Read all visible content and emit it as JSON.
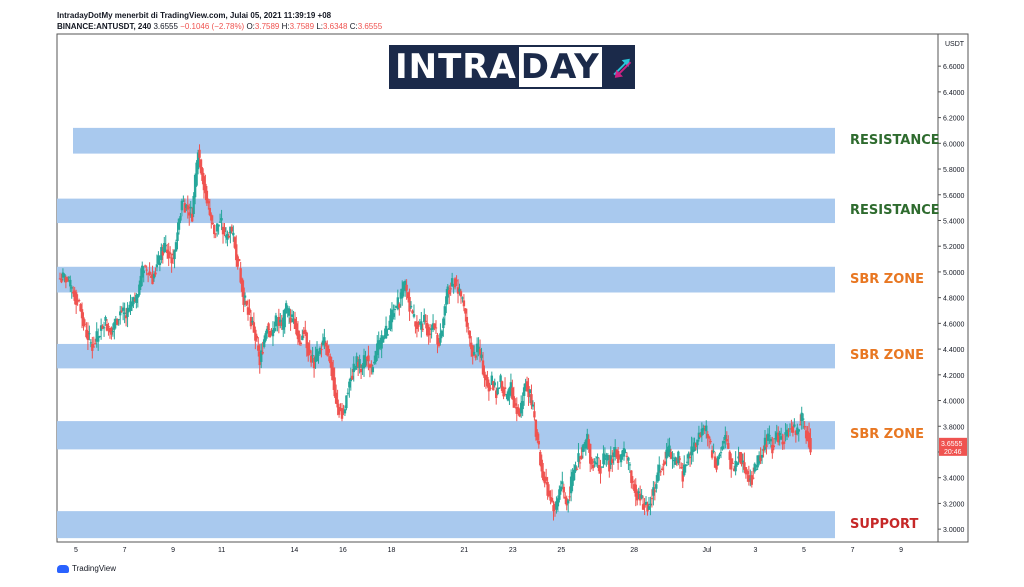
{
  "header": {
    "line1": "IntradayDotMy menerbit di TradingView.com, Julai 05, 2021 11:39:19 +08",
    "symbol": "BINANCE:ANTUSDT, 240",
    "last": "3.6555",
    "change": "−0.1046 (−2.78%)",
    "o_label": "O:",
    "o": "3.7589",
    "h_label": "H:",
    "h": "3.7589",
    "l_label": "L:",
    "l": "3.6348",
    "c_label": "C:",
    "c": "3.6555"
  },
  "logo": {
    "part1": "INTRA",
    "part2": "DAY"
  },
  "footer": {
    "brand": "TradingView"
  },
  "colors": {
    "up": "#26a69a",
    "down": "#ef5350",
    "zone_fill": "#a9c9ee",
    "resistance": "#2e6b2e",
    "sbr": "#e87722",
    "support": "#c62828"
  },
  "chart_data": {
    "type": "candlestick",
    "ylabel": "USDT",
    "ylim": [
      2.9,
      6.85
    ],
    "y_ticks": [
      "3.0000",
      "3.2000",
      "3.4000",
      "3.6000",
      "3.8000",
      "4.0000",
      "4.2000",
      "4.4000",
      "4.6000",
      "4.8000",
      "5.0000",
      "5.2000",
      "5.4000",
      "5.6000",
      "5.8000",
      "6.0000",
      "6.2000",
      "6.4000",
      "6.6000"
    ],
    "x_ticks": [
      {
        "label": "5",
        "day": 5
      },
      {
        "label": "7",
        "day": 7
      },
      {
        "label": "9",
        "day": 9
      },
      {
        "label": "11",
        "day": 11
      },
      {
        "label": "14",
        "day": 14
      },
      {
        "label": "16",
        "day": 16
      },
      {
        "label": "18",
        "day": 18
      },
      {
        "label": "21",
        "day": 21
      },
      {
        "label": "23",
        "day": 23
      },
      {
        "label": "25",
        "day": 25
      },
      {
        "label": "28",
        "day": 28
      },
      {
        "label": "Jul",
        "day": 31
      },
      {
        "label": "3",
        "day": 33
      },
      {
        "label": "5",
        "day": 35
      },
      {
        "label": "7",
        "day": 37
      },
      {
        "label": "9",
        "day": 39
      }
    ],
    "price_badge": {
      "price": 3.6555,
      "label": "3.6555",
      "countdown": "20:46"
    },
    "zones": [
      {
        "label": "RESISTANCE",
        "kind": "resistance",
        "low": 5.92,
        "high": 6.12
      },
      {
        "label": "RESISTANCE",
        "kind": "resistance",
        "low": 5.38,
        "high": 5.57
      },
      {
        "label": "SBR ZONE",
        "kind": "sbr",
        "low": 4.84,
        "high": 5.04
      },
      {
        "label": "SBR ZONE",
        "kind": "sbr",
        "low": 4.25,
        "high": 4.44
      },
      {
        "label": "SBR ZONE",
        "kind": "sbr",
        "low": 3.62,
        "high": 3.84
      },
      {
        "label": "SUPPORT",
        "kind": "support",
        "low": 2.93,
        "high": 3.14
      }
    ],
    "price_path": [
      [
        4.95,
        5
      ],
      [
        4.75,
        9
      ],
      [
        4.55,
        4
      ],
      [
        4.42,
        5
      ],
      [
        4.5,
        4
      ],
      [
        4.62,
        4
      ],
      [
        4.55,
        6
      ],
      [
        4.7,
        5
      ],
      [
        4.65,
        4
      ],
      [
        4.8,
        7
      ],
      [
        5.05,
        5
      ],
      [
        4.95,
        6
      ],
      [
        5.2,
        8
      ],
      [
        5.1,
        6
      ],
      [
        5.55,
        6
      ],
      [
        5.45,
        7
      ],
      [
        5.95,
        4
      ],
      [
        5.55,
        6
      ],
      [
        5.3,
        5
      ],
      [
        5.4,
        4
      ],
      [
        5.25,
        4
      ],
      [
        5.35,
        3
      ],
      [
        5.1,
        5
      ],
      [
        4.8,
        4
      ],
      [
        4.65,
        4
      ],
      [
        4.55,
        3
      ],
      [
        4.3,
        4
      ],
      [
        4.6,
        5
      ],
      [
        4.5,
        3
      ],
      [
        4.65,
        4
      ],
      [
        4.55,
        3
      ],
      [
        4.7,
        3
      ],
      [
        4.65,
        3
      ],
      [
        4.6,
        3
      ],
      [
        4.45,
        3
      ],
      [
        4.55,
        3
      ],
      [
        4.35,
        4
      ],
      [
        4.3,
        3
      ],
      [
        4.4,
        4
      ],
      [
        4.45,
        3
      ],
      [
        4.3,
        4
      ],
      [
        3.95,
        5
      ],
      [
        3.9,
        4
      ],
      [
        4.15,
        4
      ],
      [
        4.3,
        5
      ],
      [
        4.25,
        3
      ],
      [
        4.35,
        4
      ],
      [
        4.22,
        3
      ],
      [
        4.4,
        4
      ],
      [
        4.45,
        3
      ],
      [
        4.55,
        4
      ],
      [
        4.65,
        3
      ],
      [
        4.75,
        4
      ],
      [
        4.9,
        5
      ],
      [
        4.7,
        4
      ],
      [
        4.6,
        3
      ],
      [
        4.55,
        3
      ],
      [
        4.62,
        3
      ],
      [
        4.52,
        3
      ],
      [
        4.6,
        3
      ],
      [
        4.45,
        4
      ],
      [
        4.8,
        5
      ],
      [
        4.95,
        5
      ],
      [
        4.85,
        4
      ],
      [
        4.65,
        4
      ],
      [
        4.45,
        3
      ],
      [
        4.35,
        3
      ],
      [
        4.4,
        3
      ],
      [
        4.2,
        4
      ],
      [
        4.1,
        3
      ],
      [
        4.15,
        2
      ],
      [
        4.05,
        3
      ],
      [
        4.15,
        3
      ],
      [
        4.0,
        4
      ],
      [
        4.1,
        3
      ],
      [
        3.95,
        3
      ],
      [
        3.9,
        3
      ],
      [
        4.15,
        4
      ],
      [
        4.05,
        3
      ],
      [
        3.85,
        3
      ],
      [
        3.45,
        5
      ],
      [
        3.3,
        4
      ],
      [
        3.15,
        5
      ],
      [
        3.35,
        4
      ],
      [
        3.2,
        4
      ],
      [
        3.45,
        5
      ],
      [
        3.6,
        5
      ],
      [
        3.7,
        4
      ],
      [
        3.5,
        3
      ],
      [
        3.55,
        3
      ],
      [
        3.48,
        3
      ],
      [
        3.56,
        3
      ],
      [
        3.5,
        3
      ],
      [
        3.62,
        4
      ],
      [
        3.52,
        3
      ],
      [
        3.6,
        3
      ],
      [
        3.5,
        3
      ],
      [
        3.35,
        3
      ],
      [
        3.28,
        3
      ],
      [
        3.2,
        4
      ],
      [
        3.15,
        3
      ],
      [
        3.3,
        4
      ],
      [
        3.45,
        4
      ],
      [
        3.55,
        4
      ],
      [
        3.6,
        3
      ],
      [
        3.5,
        3
      ],
      [
        3.55,
        3
      ],
      [
        3.42,
        3
      ],
      [
        3.55,
        3
      ],
      [
        3.6,
        3
      ],
      [
        3.7,
        4
      ],
      [
        3.8,
        4
      ],
      [
        3.72,
        3
      ],
      [
        3.6,
        3
      ],
      [
        3.5,
        3
      ],
      [
        3.62,
        3
      ],
      [
        3.7,
        3
      ],
      [
        3.55,
        3
      ],
      [
        3.45,
        3
      ],
      [
        3.6,
        3
      ],
      [
        3.52,
        3
      ],
      [
        3.42,
        3
      ],
      [
        3.4,
        3
      ],
      [
        3.48,
        3
      ],
      [
        3.62,
        4
      ],
      [
        3.72,
        4
      ],
      [
        3.65,
        3
      ],
      [
        3.75,
        3
      ],
      [
        3.68,
        3
      ],
      [
        3.72,
        3
      ],
      [
        3.8,
        4
      ],
      [
        3.74,
        3
      ],
      [
        3.85,
        4
      ],
      [
        3.76,
        3
      ],
      [
        3.6555,
        3
      ]
    ]
  }
}
